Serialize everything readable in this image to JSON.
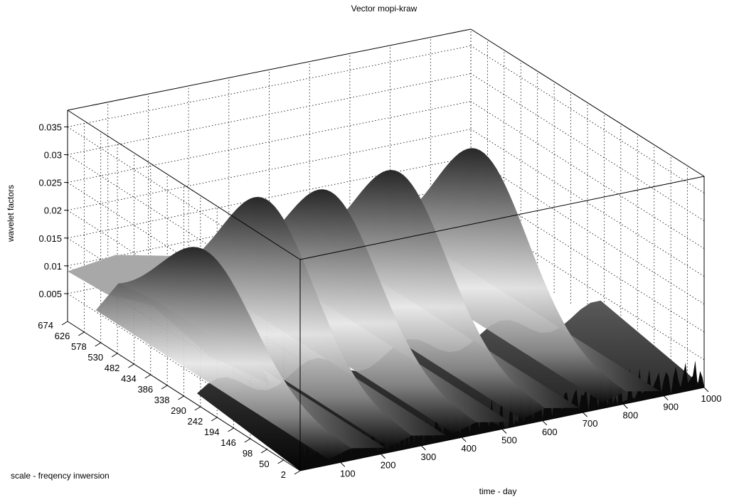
{
  "chart_data": {
    "type": "surface",
    "title": "Vector  mopi-kraw",
    "zlabel": "wavelet factors",
    "xlabel": "time - day",
    "ylabel": "scale -  freqency inwersion",
    "z_ticks": [
      0.005,
      0.01,
      0.015,
      0.02,
      0.025,
      0.03,
      0.035
    ],
    "z_tick_labels": [
      "0.005",
      "0.01",
      "0.015",
      "0.02",
      "0.025",
      "0.03",
      "0.035"
    ],
    "x_ticks": [
      100,
      200,
      300,
      400,
      500,
      600,
      700,
      800,
      900,
      1000
    ],
    "x_tick_labels": [
      "100",
      "200",
      "300",
      "400",
      "500",
      "600",
      "700",
      "800",
      "900",
      "1000"
    ],
    "y_ticks": [
      2,
      50,
      98,
      146,
      194,
      242,
      290,
      338,
      386,
      434,
      482,
      530,
      578,
      626,
      674
    ],
    "y_tick_labels": [
      "2",
      "50",
      "98",
      "146",
      "194",
      "242",
      "290",
      "338",
      "386",
      "434",
      "482",
      "530",
      "578",
      "626",
      "674"
    ],
    "xlim": [
      0,
      1000
    ],
    "ylim": [
      2,
      674
    ],
    "zlim": [
      0,
      0.038
    ],
    "grid": true,
    "ridges": [
      {
        "time": 140,
        "peak": 0.019
      },
      {
        "time": 290,
        "peak": 0.026
      },
      {
        "time": 450,
        "peak": 0.025
      },
      {
        "time": 620,
        "peak": 0.026
      },
      {
        "time": 820,
        "peak": 0.027
      }
    ],
    "low_scale_level": 0.009
  }
}
